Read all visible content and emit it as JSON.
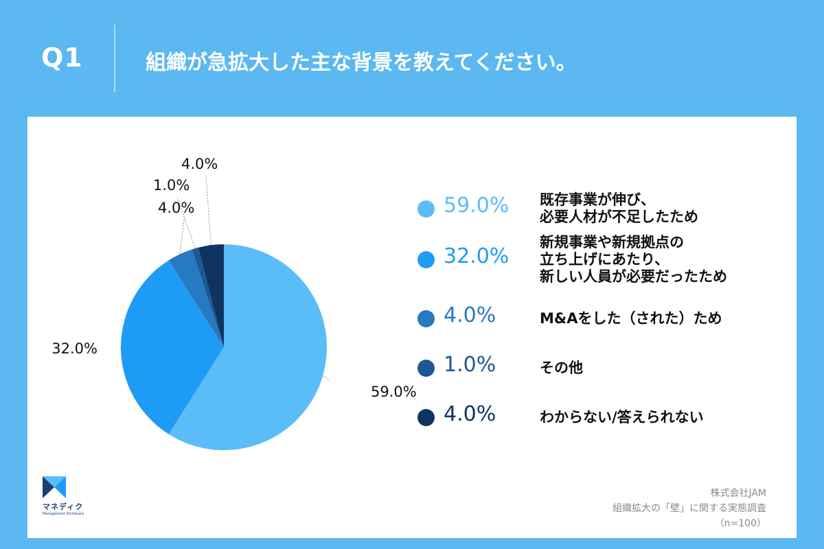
{
  "header": {
    "q_label": "Q1",
    "question": "組織が急拡大した主な背景を教えてください。"
  },
  "chart_data": {
    "type": "pie",
    "title": "組織が急拡大した主な背景を教えてください。",
    "slices": [
      {
        "label": "既存事業が伸び、\n必要人材が不足したため",
        "value": 59.0,
        "display": "59.0%",
        "color": "#5bbdf7"
      },
      {
        "label": "新規事業や新規拠点の\n立ち上げにあたり、\n新しい人員が必要だったため",
        "value": 32.0,
        "display": "32.0%",
        "color": "#1e9cf5"
      },
      {
        "label": "M&Aをした（された）ため",
        "value": 4.0,
        "display": "4.0%",
        "color": "#2779c0"
      },
      {
        "label": "その他",
        "value": 1.0,
        "display": "1.0%",
        "color": "#1d5796"
      },
      {
        "label": "わからない/答えられない",
        "value": 4.0,
        "display": "4.0%",
        "color": "#0f3462"
      }
    ]
  },
  "source": {
    "company": "株式会社JAM",
    "survey": "組織拡大の「壁」に関する実態調査",
    "sample": "（n=100）"
  },
  "logo": {
    "text": "マネディク",
    "sub": "Management Dictionary"
  }
}
